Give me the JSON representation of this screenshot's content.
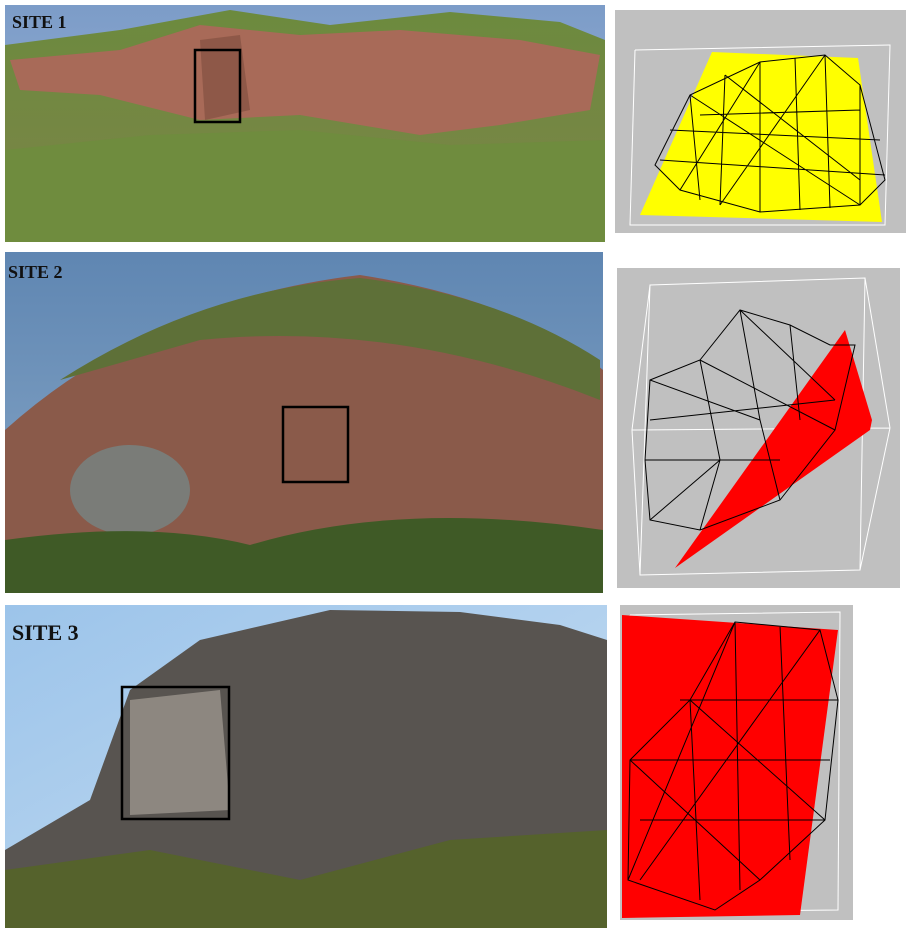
{
  "sites": [
    {
      "label": "SITE 1"
    },
    {
      "label": "SITE 2"
    },
    {
      "label": "SITE 3"
    }
  ]
}
